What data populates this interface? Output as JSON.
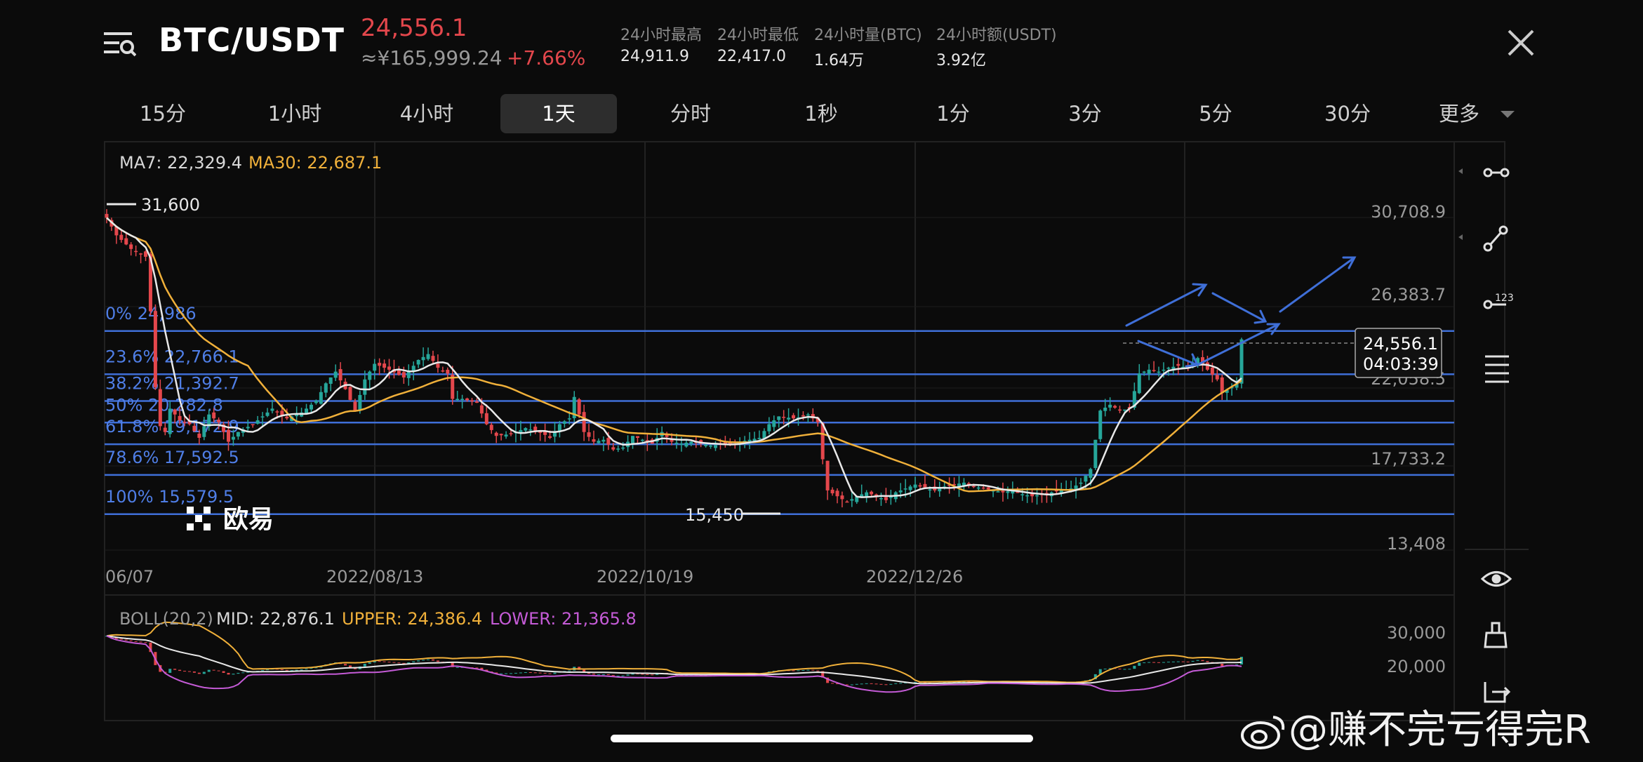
{
  "header": {
    "pair": "BTC/USDT",
    "price": "24,556.1",
    "price_cny": "≈¥165,999.24",
    "change": "+7.66%",
    "stats": [
      {
        "label": "24小时最高",
        "value": "24,911.9"
      },
      {
        "label": "24小时最低",
        "value": "22,417.0"
      },
      {
        "label": "24小时量(BTC)",
        "value": "1.64万"
      },
      {
        "label": "24小时额(USDT)",
        "value": "3.92亿"
      }
    ]
  },
  "tabs": [
    {
      "label": "15分"
    },
    {
      "label": "1小时"
    },
    {
      "label": "4小时"
    },
    {
      "label": "1天",
      "active": true
    },
    {
      "label": "分时"
    },
    {
      "label": "1秒"
    },
    {
      "label": "1分"
    },
    {
      "label": "3分"
    },
    {
      "label": "5分"
    },
    {
      "label": "30分"
    },
    {
      "label": "更多"
    }
  ],
  "chart_data": {
    "type": "candlestick",
    "ma_legend": {
      "ma7": "MA7: 22,329.4",
      "ma30": "MA30: 22,687.1"
    },
    "high_marker": "31,600",
    "low_marker": "15,450",
    "y_ticks": [
      "30,708.9",
      "26,383.7",
      "22,058.5",
      "17,733.2",
      "13,408"
    ],
    "x_ticks": [
      "06/07",
      "2022/08/13",
      "2022/10/19",
      "2022/12/26"
    ],
    "fib_levels": [
      {
        "label": "0% 24,986",
        "value": 24986
      },
      {
        "label": "23.6% 22,766.1",
        "value": 22766.1
      },
      {
        "label": "38.2% 21,392.7",
        "value": 21392.7
      },
      {
        "label": "50% 20,282.8",
        "value": 20282.8
      },
      {
        "label": "61.8% 19,172.9",
        "value": 19172.9
      },
      {
        "label": "78.6% 17,592.5",
        "value": 17592.5
      },
      {
        "label": "100% 15,579.5",
        "value": 15579.5
      }
    ],
    "current_price": "24,556.1",
    "countdown": "04:03:39",
    "watermark": "欧易",
    "close_path": [
      [
        0,
        30800
      ],
      [
        2,
        29900
      ],
      [
        5,
        29200
      ],
      [
        8,
        28800
      ],
      [
        9,
        26000
      ],
      [
        10,
        22100
      ],
      [
        11,
        20100
      ],
      [
        12,
        19800
      ],
      [
        13,
        21000
      ],
      [
        15,
        20400
      ],
      [
        17,
        20200
      ],
      [
        19,
        19500
      ],
      [
        21,
        20700
      ],
      [
        23,
        20300
      ],
      [
        25,
        19300
      ],
      [
        27,
        19800
      ],
      [
        30,
        20200
      ],
      [
        34,
        21000
      ],
      [
        37,
        20500
      ],
      [
        40,
        20800
      ],
      [
        43,
        21400
      ],
      [
        45,
        22300
      ],
      [
        47,
        22900
      ],
      [
        49,
        22000
      ],
      [
        51,
        20900
      ],
      [
        53,
        22500
      ],
      [
        55,
        23300
      ],
      [
        58,
        23000
      ],
      [
        61,
        22600
      ],
      [
        64,
        23500
      ],
      [
        66,
        23800
      ],
      [
        68,
        23100
      ],
      [
        70,
        22800
      ],
      [
        71,
        21500
      ],
      [
        73,
        21500
      ],
      [
        76,
        21300
      ],
      [
        78,
        20200
      ],
      [
        80,
        19600
      ],
      [
        83,
        19700
      ],
      [
        86,
        20000
      ],
      [
        89,
        19800
      ],
      [
        91,
        19500
      ],
      [
        93,
        20200
      ],
      [
        95,
        20500
      ],
      [
        96,
        21600
      ],
      [
        98,
        19800
      ],
      [
        100,
        19300
      ],
      [
        102,
        19400
      ],
      [
        104,
        18900
      ],
      [
        106,
        19000
      ],
      [
        108,
        19600
      ],
      [
        110,
        19400
      ],
      [
        112,
        19200
      ],
      [
        114,
        19800
      ],
      [
        116,
        19300
      ],
      [
        118,
        19200
      ],
      [
        120,
        19300
      ],
      [
        124,
        19100
      ],
      [
        128,
        19200
      ],
      [
        132,
        19400
      ],
      [
        134,
        19500
      ],
      [
        136,
        20200
      ],
      [
        138,
        20600
      ],
      [
        141,
        20500
      ],
      [
        143,
        20600
      ],
      [
        144,
        20700
      ],
      [
        146,
        20300
      ],
      [
        147,
        18400
      ],
      [
        148,
        16800
      ],
      [
        150,
        16500
      ],
      [
        152,
        16200
      ],
      [
        154,
        16500
      ],
      [
        156,
        16700
      ],
      [
        158,
        16500
      ],
      [
        160,
        16300
      ],
      [
        162,
        16700
      ],
      [
        164,
        16900
      ],
      [
        166,
        17100
      ],
      [
        168,
        16900
      ],
      [
        170,
        16800
      ],
      [
        172,
        17000
      ],
      [
        174,
        17100
      ],
      [
        176,
        17200
      ],
      [
        178,
        17000
      ],
      [
        180,
        16900
      ],
      [
        182,
        16800
      ],
      [
        184,
        16700
      ],
      [
        186,
        16800
      ],
      [
        188,
        16600
      ],
      [
        190,
        16500
      ],
      [
        192,
        16600
      ],
      [
        194,
        16700
      ],
      [
        196,
        16800
      ],
      [
        198,
        16900
      ],
      [
        200,
        17200
      ],
      [
        202,
        17900
      ],
      [
        204,
        20900
      ],
      [
        206,
        21200
      ],
      [
        208,
        20900
      ],
      [
        210,
        21000
      ],
      [
        212,
        22800
      ],
      [
        214,
        23000
      ],
      [
        216,
        22900
      ],
      [
        218,
        23100
      ],
      [
        220,
        23200
      ],
      [
        222,
        23100
      ],
      [
        224,
        23600
      ],
      [
        226,
        23000
      ],
      [
        228,
        22500
      ],
      [
        229,
        21800
      ],
      [
        231,
        22100
      ],
      [
        232,
        22300
      ],
      [
        233,
        24556
      ]
    ],
    "boll_legend": {
      "params": "BOLL(20,2)",
      "mid": "MID: 22,876.1",
      "upper": "UPPER: 24,386.4",
      "lower": "LOWER: 21,365.8"
    },
    "boll_y_ticks": [
      "30,000",
      "20,000"
    ]
  },
  "side_icons": [
    "horizontal-line-icon",
    "trend-line-icon",
    "price-line-icon",
    "indicator-list-icon",
    "eye-icon",
    "brush-icon",
    "export-icon"
  ],
  "watermark_text": "@赚不完亏得完R",
  "colors": {
    "up": "#26a69a",
    "down": "#e4474c",
    "ma7": "#e8e8e8",
    "ma30": "#f0b03a",
    "fib": "#3f6fd8",
    "boll_lower": "#c45bd6"
  }
}
